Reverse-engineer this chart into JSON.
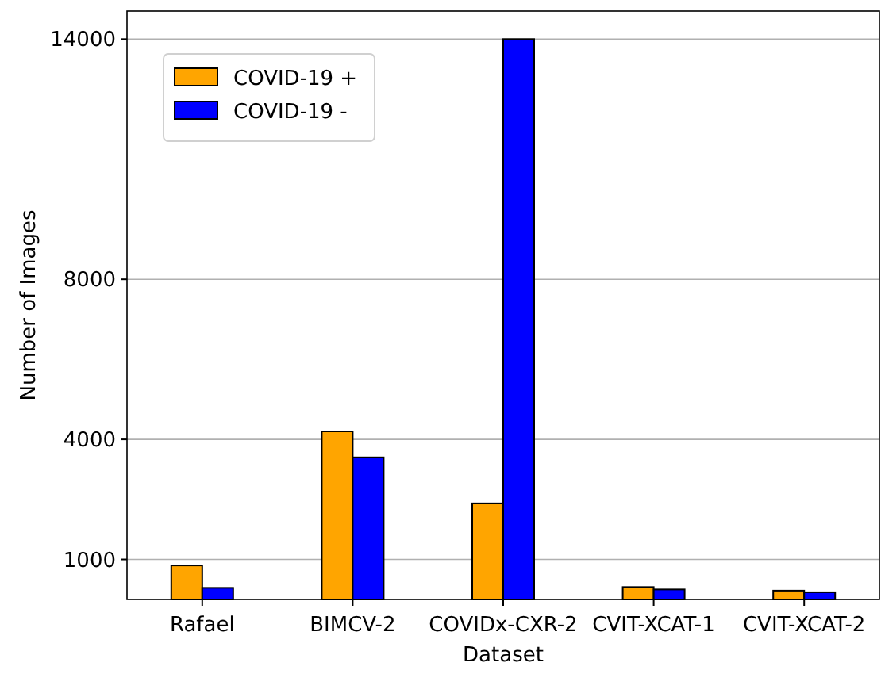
{
  "chart_data": {
    "type": "bar",
    "xlabel": "Dataset",
    "ylabel": "Number of Images",
    "categories": [
      "Rafael",
      "BIMCV-2",
      "COVIDx-CXR-2",
      "CVIT-XCAT-1",
      "CVIT-XCAT-2"
    ],
    "series": [
      {
        "name": "COVID-19 +",
        "color": "#ffa500",
        "values": [
          850,
          4200,
          2400,
          310,
          220
        ]
      },
      {
        "name": "COVID-19 -",
        "color": "#0000ff",
        "values": [
          290,
          3550,
          14000,
          250,
          180
        ]
      }
    ],
    "ylim": [
      0,
      14700
    ],
    "yticks": [
      1000,
      4000,
      8000,
      14000
    ],
    "grid": "y",
    "legend": "top left"
  }
}
